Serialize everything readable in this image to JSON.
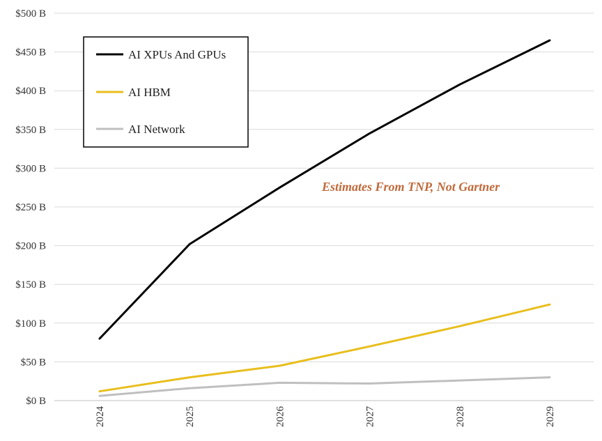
{
  "chart_data": {
    "type": "line",
    "categories": [
      "2024",
      "2025",
      "2026",
      "2027",
      "2028",
      "2029"
    ],
    "series": [
      {
        "name": "AI XPUs And GPUs",
        "values": [
          80,
          202,
          275,
          345,
          408,
          465
        ],
        "color": "#000000"
      },
      {
        "name": "AI HBM",
        "values": [
          12,
          30,
          45,
          70,
          96,
          124
        ],
        "color": "#E8BE1C"
      },
      {
        "name": "AI Network",
        "values": [
          6,
          16,
          23,
          22,
          26,
          30
        ],
        "color": "#BFBFBF"
      }
    ],
    "ylim": [
      0,
      500
    ],
    "yticks": [
      0,
      50,
      100,
      150,
      200,
      250,
      300,
      350,
      400,
      450,
      500
    ],
    "ytick_labels": [
      "$0 B",
      "$50 B",
      "$100 B",
      "$150 B",
      "$200 B",
      "$250 B",
      "$300 B",
      "$350 B",
      "$400 B",
      "$450 B",
      "$500 B"
    ],
    "grid": true,
    "legend_position": "top-left",
    "annotation": {
      "text": "Estimates From TNP, Not Gartner",
      "color": "#C0693A"
    }
  }
}
